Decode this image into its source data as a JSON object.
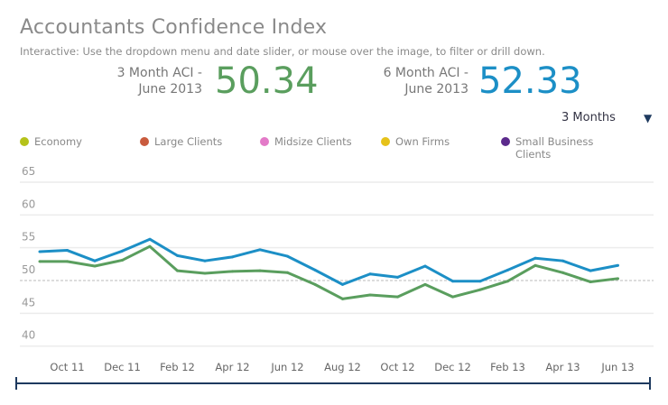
{
  "header": {
    "title": "Accountants Confidence Index",
    "subtitle": "Interactive: Use the dropdown menu and date slider, or mouse over the image, to filter or drill down."
  },
  "kpis": [
    {
      "label_line1": "3 Month ACI -",
      "label_line2": "June 2013",
      "value": "50.34",
      "color": "#5a9e5e"
    },
    {
      "label_line1": "6 Month ACI -",
      "label_line2": "June 2013",
      "value": "52.33",
      "color": "#1c8fc6"
    }
  ],
  "dropdown": {
    "selected": "3 Months"
  },
  "legend": [
    {
      "label": "Economy",
      "color": "#b5c21a"
    },
    {
      "label": "Large Clients",
      "color": "#c95b3e"
    },
    {
      "label": "Midsize Clients",
      "color": "#e37ac8"
    },
    {
      "label": "Own Firms",
      "color": "#e6c21a"
    },
    {
      "label": "Small Business Clients",
      "color": "#5b2a8c"
    }
  ],
  "chart_data": {
    "type": "line",
    "x": [
      "Sep 11",
      "Oct 11",
      "Nov 11",
      "Dec 11",
      "Jan 12",
      "Feb 12",
      "Mar 12",
      "Apr 12",
      "May 12",
      "Jun 12",
      "Jul 12",
      "Aug 12",
      "Sep 12",
      "Oct 12",
      "Nov 12",
      "Dec 12",
      "Jan 13",
      "Feb 13",
      "Mar 13",
      "Apr 13",
      "May 13",
      "Jun 13"
    ],
    "x_tick_labels": [
      "Oct 11",
      "Dec 11",
      "Feb 12",
      "Apr 12",
      "Jun 12",
      "Aug 12",
      "Oct 12",
      "Dec 12",
      "Feb 13",
      "Apr 13",
      "Jun 13"
    ],
    "y_ticks": [
      40,
      45,
      50,
      55,
      60,
      65
    ],
    "ylim": [
      40,
      65
    ],
    "reference_line": 50,
    "grid": true,
    "series": [
      {
        "color": "#1c8fc6",
        "values": [
          54.4,
          54.6,
          53.0,
          54.5,
          56.3,
          53.8,
          53.0,
          53.6,
          54.7,
          53.7,
          51.6,
          49.4,
          51.0,
          50.5,
          52.2,
          49.9,
          49.9,
          51.6,
          53.4,
          53.0,
          51.5,
          52.3
        ]
      },
      {
        "color": "#5a9e5e",
        "values": [
          52.9,
          52.9,
          52.2,
          53.1,
          55.2,
          51.5,
          51.1,
          51.4,
          51.5,
          51.2,
          49.4,
          47.2,
          47.8,
          47.5,
          49.4,
          47.5,
          48.6,
          49.9,
          52.3,
          51.2,
          49.8,
          50.3
        ]
      }
    ]
  },
  "slider_color": "#1e3a5f"
}
